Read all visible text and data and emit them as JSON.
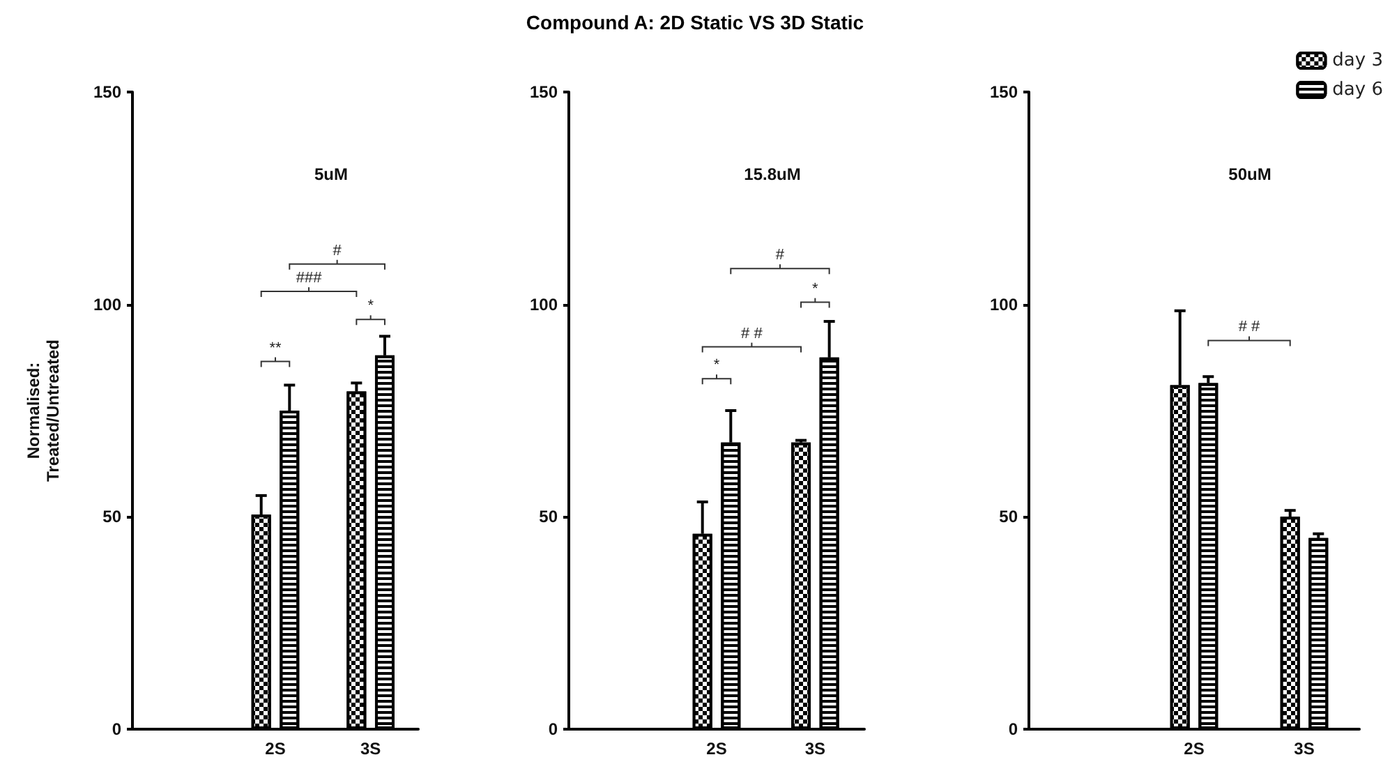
{
  "chart_data": [
    {
      "type": "bar",
      "subtitle": "5uM",
      "ylabel": "Normalised:\nTreated/Untreated",
      "categories": [
        null,
        "2S",
        "3S"
      ],
      "series": [
        {
          "color": "#000000",
          "values": [
            null,
            50.5,
            79.5
          ],
          "errors": [
            null,
            [
              50.5,
              55
            ],
            [
              79.5,
              81.5
            ]
          ]
        },
        {
          "color": "#ffffff",
          "values": [
            null,
            75,
            88
          ],
          "errors": [
            null,
            [
              75,
              81
            ],
            [
              88,
              92.5
            ]
          ]
        }
      ],
      "ylim": [
        0,
        150
      ],
      "yticks": [
        0,
        50,
        100,
        150
      ],
      "grid": false,
      "legend": false,
      "annotations": [
        "**",
        "*",
        "###",
        "#"
      ]
    },
    {
      "type": "bar",
      "title": "Compound A: 2D Static VS 3D Static",
      "subtitle": "15.8uM",
      "categories": [
        null,
        "2S",
        "3S"
      ],
      "series": [
        {
          "color": "#000000",
          "values": [
            null,
            46,
            67.5
          ],
          "errors": [
            null,
            [
              46,
              53.5
            ],
            [
              67.5,
              68
            ]
          ]
        },
        {
          "color": "#ffffff",
          "values": [
            null,
            67.5,
            87.5
          ],
          "errors": [
            null,
            [
              67.5,
              75
            ],
            [
              87.5,
              96
            ]
          ]
        }
      ],
      "ylim": [
        0,
        150
      ],
      "yticks": [
        0,
        50,
        100,
        150
      ],
      "grid": false,
      "legend": false,
      "annotations": [
        "*",
        "# #",
        "*",
        "#"
      ]
    },
    {
      "type": "bar",
      "subtitle": "50uM",
      "categories": [
        null,
        "2S",
        "3S"
      ],
      "series": [
        {
          "name": "day 3",
          "color": "#000000",
          "values": [
            null,
            81,
            50
          ],
          "errors": [
            null,
            [
              81,
              98.5
            ],
            [
              50,
              51.5
            ]
          ]
        },
        {
          "name": "day 6",
          "color": "#ffffff",
          "values": [
            null,
            81.5,
            45
          ],
          "errors": [
            null,
            [
              81.5,
              83
            ],
            [
              45,
              46
            ]
          ]
        }
      ],
      "ylim": [
        0,
        150
      ],
      "yticks": [
        0,
        50,
        100,
        150
      ],
      "grid": false,
      "legend": "top right",
      "annotations": [
        "# #"
      ]
    }
  ]
}
